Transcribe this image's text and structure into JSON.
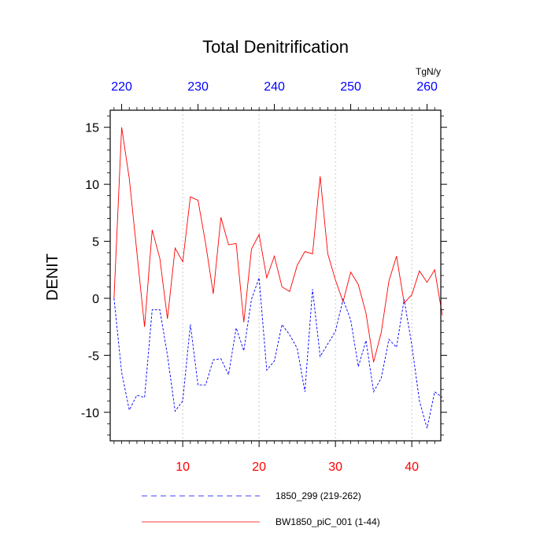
{
  "chart_data": {
    "type": "line",
    "title": "Total Denitrification",
    "ylabel": "DENIT",
    "units_label": "TgN/y",
    "ylim": [
      -12.5,
      16.5
    ],
    "yticks": [
      -10,
      -5,
      0,
      5,
      10,
      15
    ],
    "ytick_labels": [
      "-10",
      "-5",
      "0",
      "5",
      "10",
      "15"
    ],
    "bottom_axis": {
      "range": [
        0.5,
        43.8
      ],
      "ticks": [
        10,
        20,
        30,
        40
      ],
      "tick_labels": [
        "10",
        "20",
        "30",
        "40"
      ],
      "color": "#ff0000"
    },
    "top_axis": {
      "range": [
        218.5,
        261.8
      ],
      "ticks": [
        220,
        230,
        240,
        250,
        260
      ],
      "tick_labels": [
        "220",
        "230",
        "240",
        "250",
        "260"
      ],
      "color": "#0000ff"
    },
    "grid_x": [
      10,
      20,
      30,
      40
    ],
    "series": [
      {
        "name": "1850_299 (219-262)",
        "axis": "top",
        "color": "#0000ff",
        "dash": "dashed",
        "x": [
          219,
          220,
          221,
          222,
          223,
          224,
          225,
          226,
          227,
          228,
          229,
          230,
          231,
          232,
          233,
          234,
          235,
          236,
          237,
          238,
          239,
          240,
          241,
          242,
          243,
          244,
          245,
          246,
          247,
          248,
          249,
          250,
          251,
          252,
          253,
          254,
          255,
          256,
          257,
          258,
          259,
          260,
          261,
          262
        ],
        "values": [
          0.0,
          -6.5,
          -9.8,
          -8.5,
          -8.7,
          -1.0,
          -1.0,
          -5.0,
          -9.9,
          -9.0,
          -2.3,
          -7.6,
          -7.6,
          -5.4,
          -5.3,
          -6.7,
          -2.6,
          -4.6,
          -0.1,
          1.8,
          -6.3,
          -5.5,
          -2.3,
          -3.2,
          -4.4,
          -8.2,
          0.8,
          -5.1,
          -4.0,
          -2.9,
          -0.1,
          -1.9,
          -6.0,
          -3.7,
          -8.2,
          -7.0,
          -3.6,
          -4.3,
          -0.1,
          -4.1,
          -9.0,
          -11.4,
          -8.2,
          -8.7
        ]
      },
      {
        "name": "BW1850_piC_001 (1-44)",
        "axis": "bottom",
        "color": "#ff0000",
        "dash": "solid",
        "x": [
          1,
          2,
          3,
          4,
          5,
          6,
          7,
          8,
          9,
          10,
          11,
          12,
          13,
          14,
          15,
          16,
          17,
          18,
          19,
          20,
          21,
          22,
          23,
          24,
          25,
          26,
          27,
          28,
          29,
          30,
          31,
          32,
          33,
          34,
          35,
          36,
          37,
          38,
          39,
          40,
          41,
          42,
          43,
          44
        ],
        "values": [
          0.0,
          15.0,
          10.5,
          4.0,
          -2.5,
          6.0,
          3.5,
          -1.8,
          4.4,
          3.2,
          8.9,
          8.6,
          4.8,
          0.4,
          7.1,
          4.7,
          4.8,
          -2.1,
          4.3,
          5.6,
          1.8,
          3.7,
          1.0,
          0.6,
          2.9,
          4.1,
          3.9,
          10.7,
          3.9,
          1.6,
          -0.3,
          2.3,
          1.2,
          -1.3,
          -5.6,
          -3.0,
          1.5,
          3.7,
          -0.4,
          0.3,
          2.4,
          1.4,
          2.5,
          -1.5
        ]
      }
    ]
  }
}
